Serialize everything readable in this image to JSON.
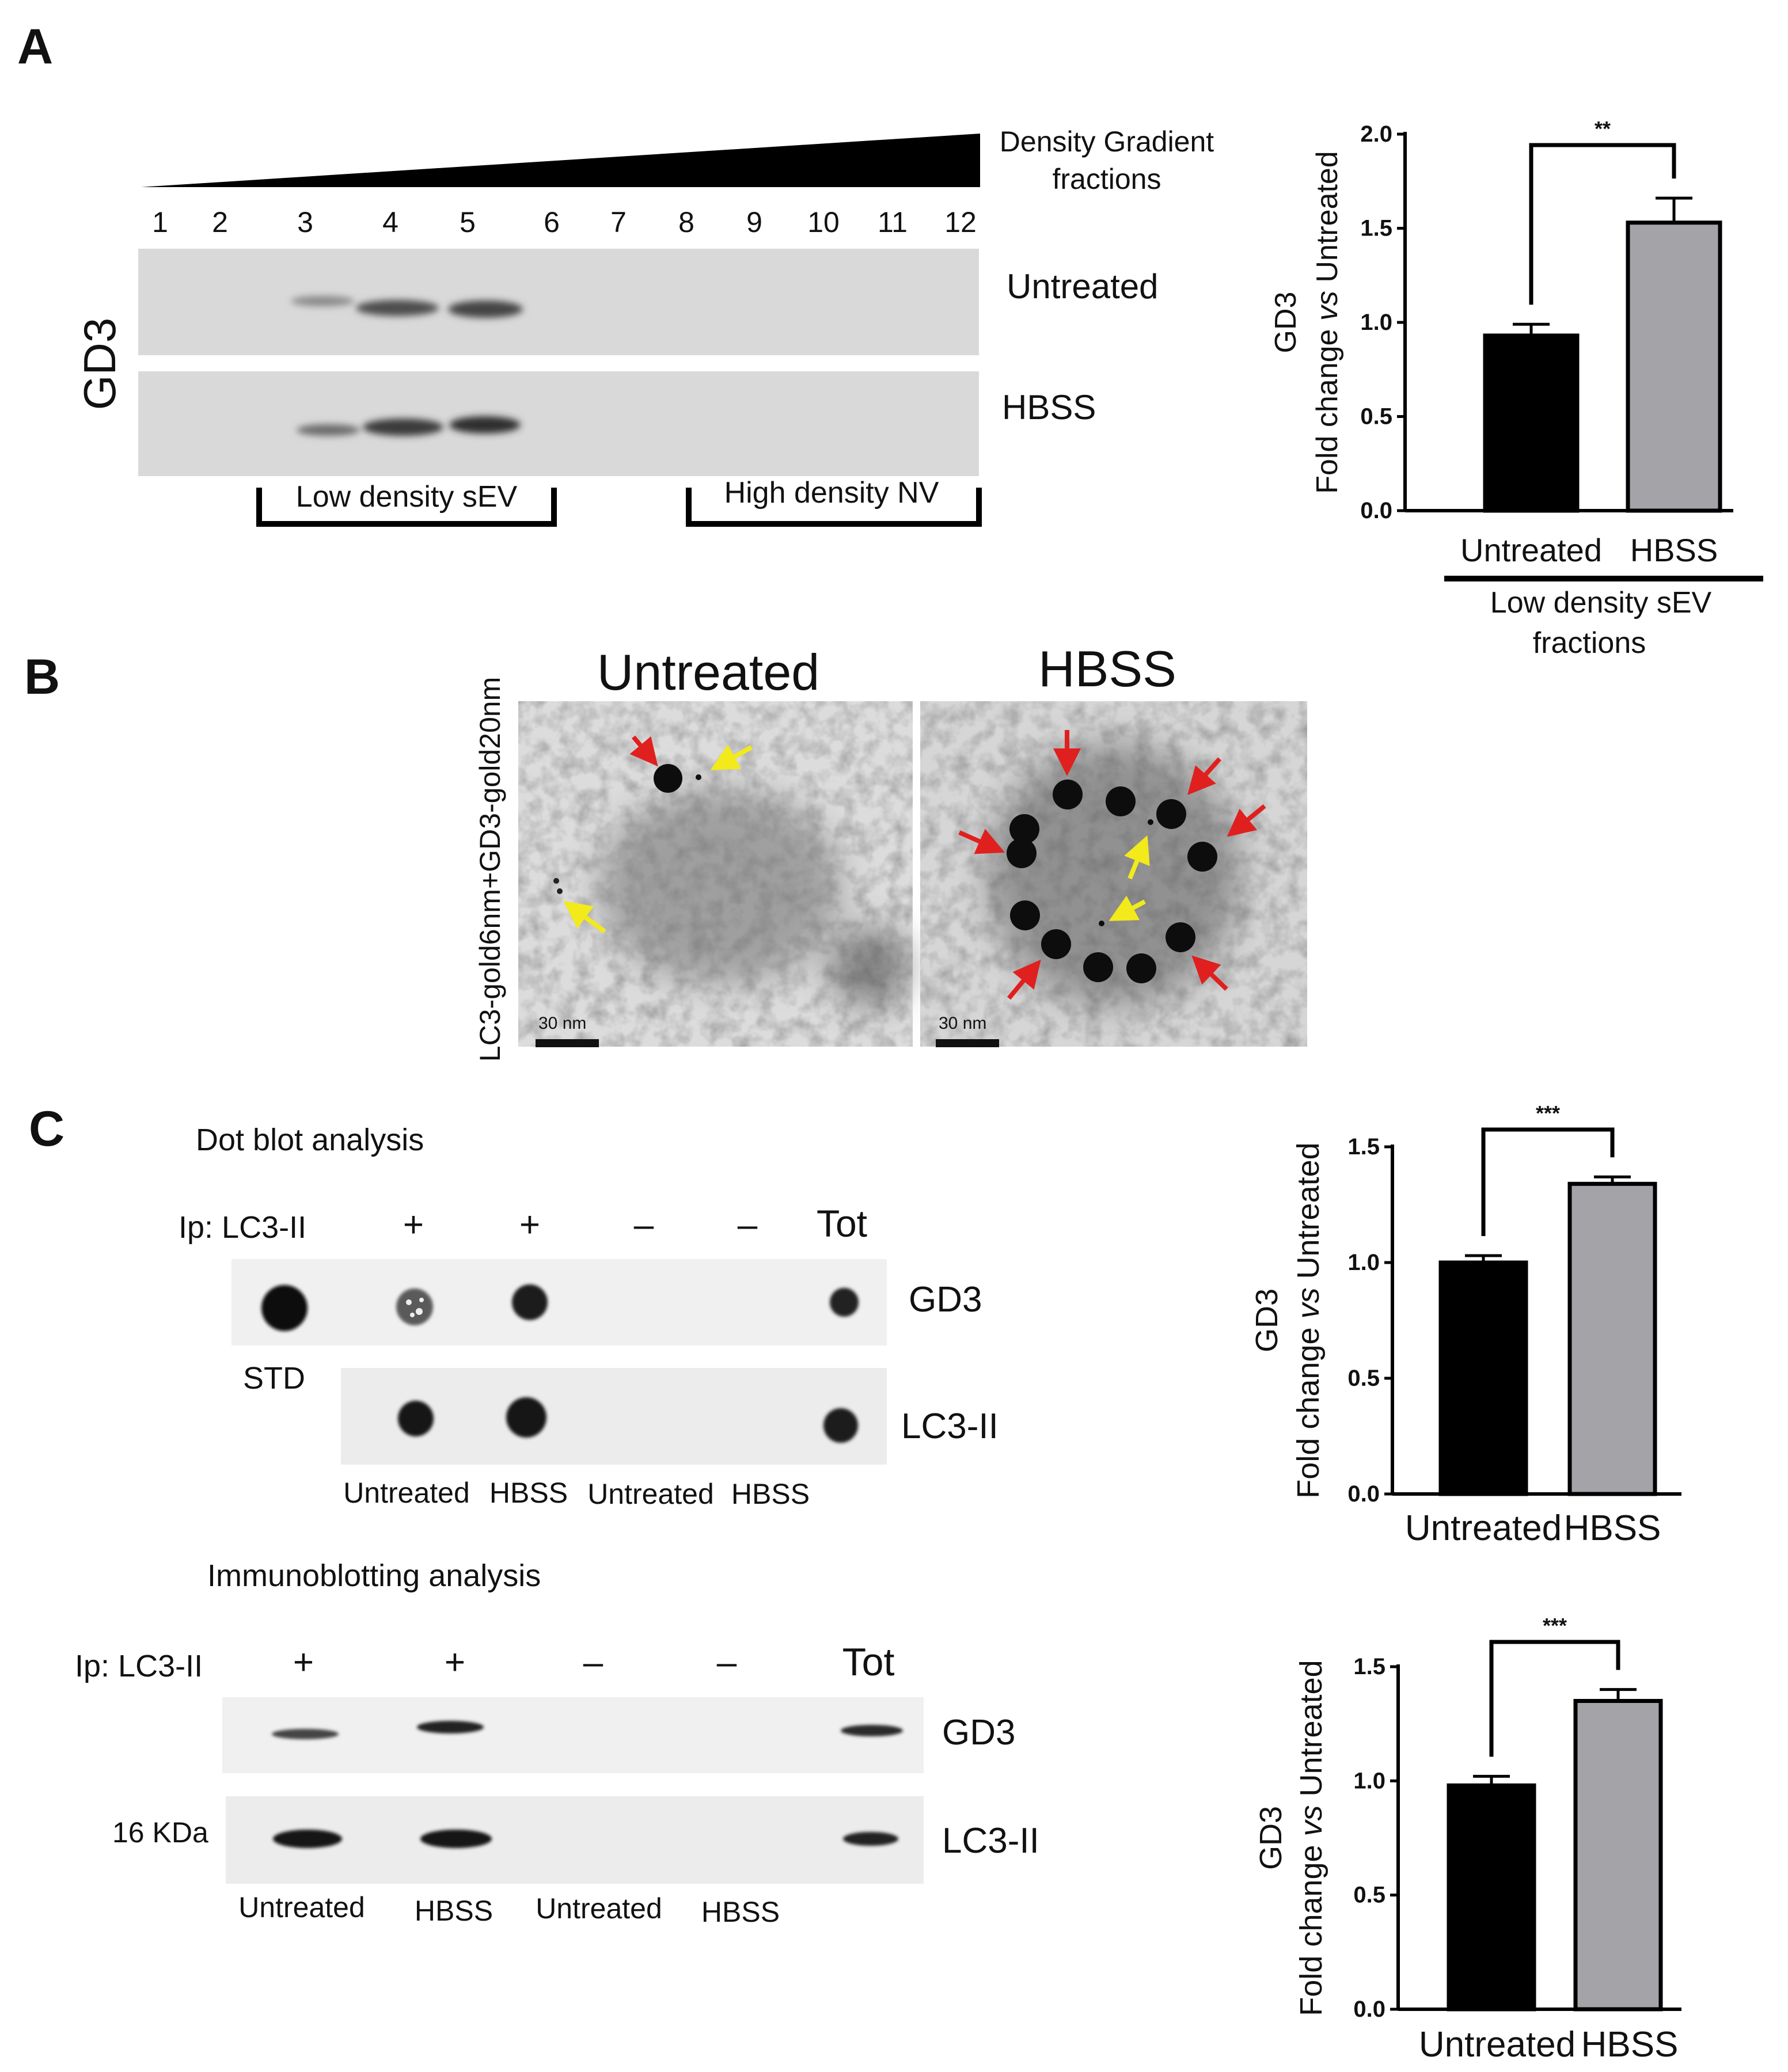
{
  "panel_a": {
    "letter": "A",
    "gradient_label_1": "Density Gradient",
    "gradient_label_2": "fractions",
    "fractions": [
      "1",
      "2",
      "3",
      "4",
      "5",
      "6",
      "7",
      "8",
      "9",
      "10",
      "11",
      "12"
    ],
    "antibody": "GD3",
    "row_untreated": "Untreated",
    "row_hbss": "HBSS",
    "bracket_low": "Low density sEV",
    "bracket_high": "High density NV",
    "group_label_1": "Low density sEV",
    "group_label_2": "fractions"
  },
  "panel_b": {
    "letter": "B",
    "title_untreated": "Untreated",
    "title_hbss": "HBSS",
    "side_label": "LC3-gold6nm+GD3-gold20nm",
    "scale_bar": "30 nm"
  },
  "panel_c": {
    "letter": "C",
    "dot_title": "Dot blot analysis",
    "ip_label": "Ip: LC3-II",
    "lane_signs": [
      "+",
      "+",
      "–",
      "–",
      "Tot"
    ],
    "row_gd3": "GD3",
    "row_lc3": "LC3-II",
    "std": "STD",
    "lanes": [
      "Untreated",
      "HBSS",
      "Untreated",
      "HBSS"
    ],
    "immuno_title": "Immunoblotting analysis",
    "kda": "16 KDa"
  },
  "colors": {
    "untreated_bar": "#000000",
    "hbss_bar": "#a3a3a8",
    "red_arrow": "#e0201e",
    "yellow_arrow": "#f2ea1b"
  },
  "chart_data": [
    {
      "type": "bar",
      "panel": "A",
      "categories": [
        "Untreated",
        "HBSS"
      ],
      "values": [
        0.93,
        1.53
      ],
      "errors": [
        0.06,
        0.13
      ],
      "ylabel_1": "GD3",
      "ylabel_2": "Fold change vs Untreated",
      "ylim": [
        0,
        2.0
      ],
      "yticks": [
        "0.0",
        "0.5",
        "1.0",
        "1.5",
        "2.0"
      ],
      "significance": "**"
    },
    {
      "type": "bar",
      "panel": "C-dot",
      "categories": [
        "Untreated",
        "HBSS"
      ],
      "values": [
        1.0,
        1.34
      ],
      "errors": [
        0.03,
        0.03
      ],
      "ylabel_1": "GD3",
      "ylabel_2": "Fold change vs Untreated",
      "ylim": [
        0,
        1.5
      ],
      "yticks": [
        "0.0",
        "0.5",
        "1.0",
        "1.5"
      ],
      "significance": "***"
    },
    {
      "type": "bar",
      "panel": "C-immuno",
      "categories": [
        "Untreated",
        "HBSS"
      ],
      "values": [
        0.98,
        1.35
      ],
      "errors": [
        0.04,
        0.05
      ],
      "ylabel_1": "GD3",
      "ylabel_2": "Fold change vs Untreated",
      "ylim": [
        0,
        1.5
      ],
      "yticks": [
        "0.0",
        "0.5",
        "1.0",
        "1.5"
      ],
      "significance": "***"
    }
  ]
}
